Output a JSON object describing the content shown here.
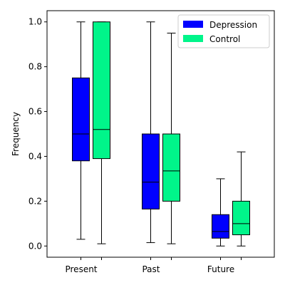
{
  "chart_data": {
    "type": "box",
    "title": "",
    "xlabel": "",
    "ylabel": "Frequency",
    "ylim": [
      -0.05,
      1.05
    ],
    "yticks": [
      "0.0",
      "0.2",
      "0.4",
      "0.6",
      "0.8",
      "1.0"
    ],
    "grid": false,
    "legend_position": "upper-right",
    "categories": [
      "Present",
      "Past",
      "Future"
    ],
    "series": [
      {
        "name": "Depression",
        "color": "#0000ff",
        "boxes": [
          {
            "min": 0.03,
            "q1": 0.38,
            "median": 0.5,
            "q3": 0.75,
            "max": 1.0
          },
          {
            "min": 0.015,
            "q1": 0.165,
            "median": 0.285,
            "q3": 0.5,
            "max": 1.0
          },
          {
            "min": 0.0,
            "q1": 0.035,
            "median": 0.065,
            "q3": 0.14,
            "max": 0.3
          }
        ]
      },
      {
        "name": "Control",
        "color": "#00f58a",
        "boxes": [
          {
            "min": 0.01,
            "q1": 0.39,
            "median": 0.52,
            "q3": 1.0,
            "max": 1.0
          },
          {
            "min": 0.01,
            "q1": 0.2,
            "median": 0.335,
            "q3": 0.5,
            "max": 0.95
          },
          {
            "min": 0.0,
            "q1": 0.05,
            "median": 0.1,
            "q3": 0.2,
            "max": 0.42
          }
        ]
      }
    ]
  }
}
